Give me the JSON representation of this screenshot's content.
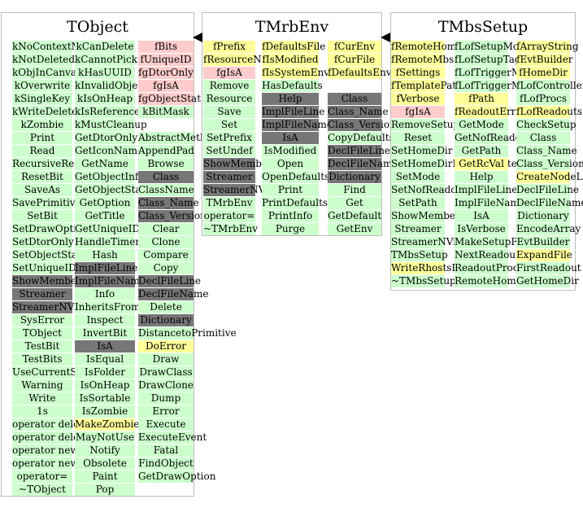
{
  "boxes": [
    {
      "title": "TObject",
      "columns": [
        [
          {
            "t": "kNoContextMenu",
            "k": "enum"
          },
          {
            "t": "kNotDeleted",
            "k": "enum"
          },
          {
            "t": "kObjInCanvas",
            "k": "enum"
          },
          {
            "t": "kOverwrite",
            "k": "enum"
          },
          {
            "t": "kSingleKey",
            "k": "enum"
          },
          {
            "t": "kWriteDelete",
            "k": "enum"
          },
          {
            "t": "kZombie",
            "k": "enum"
          },
          {
            "t": "Print",
            "k": "method"
          },
          {
            "t": "Read",
            "k": "method"
          },
          {
            "t": "RecursiveRemove",
            "k": "method"
          },
          {
            "t": "ResetBit",
            "k": "method"
          },
          {
            "t": "SaveAs",
            "k": "method"
          },
          {
            "t": "SavePrimitive",
            "k": "method"
          },
          {
            "t": "SetBit",
            "k": "method"
          },
          {
            "t": "SetDrawOption",
            "k": "method"
          },
          {
            "t": "SetDtorOnly",
            "k": "method"
          },
          {
            "t": "SetObjectStat",
            "k": "method"
          },
          {
            "t": "SetUniqueID",
            "k": "method"
          },
          {
            "t": "ShowMembers",
            "k": "derived"
          },
          {
            "t": "Streamer",
            "k": "derived"
          },
          {
            "t": "StreamerNVirtual",
            "k": "derived"
          },
          {
            "t": "SysError",
            "k": "method"
          },
          {
            "t": "TObject",
            "k": "method"
          },
          {
            "t": "TestBit",
            "k": "method"
          },
          {
            "t": "TestBits",
            "k": "method"
          },
          {
            "t": "UseCurrentStyle",
            "k": "method"
          },
          {
            "t": "Warning",
            "k": "method"
          },
          {
            "t": "Write",
            "k": "method"
          },
          {
            "t": "1s",
            "k": "method"
          },
          {
            "t": "operator delete",
            "k": "method"
          },
          {
            "t": "operator delete[]",
            "k": "method"
          },
          {
            "t": "operator new",
            "k": "method"
          },
          {
            "t": "operator new[]",
            "k": "method"
          },
          {
            "t": "operator=",
            "k": "method"
          },
          {
            "t": "~TObject",
            "k": "method"
          }
        ],
        [
          {
            "t": "kCanDelete",
            "k": "enum"
          },
          {
            "t": "kCannotPick",
            "k": "enum"
          },
          {
            "t": "kHasUUID",
            "k": "enum"
          },
          {
            "t": "kInvalidObject",
            "k": "enum"
          },
          {
            "t": "kIsOnHeap",
            "k": "enum"
          },
          {
            "t": "kIsReferenced",
            "k": "enum"
          },
          {
            "t": "kMustCleanup",
            "k": "enum"
          },
          {
            "t": "GetDtorOnly",
            "k": "method"
          },
          {
            "t": "GetIconName",
            "k": "method"
          },
          {
            "t": "GetName",
            "k": "method"
          },
          {
            "t": "GetObjectInfo",
            "k": "method"
          },
          {
            "t": "GetObjectStat",
            "k": "method"
          },
          {
            "t": "GetOption",
            "k": "method"
          },
          {
            "t": "GetTitle",
            "k": "method"
          },
          {
            "t": "GetUniqueID",
            "k": "method"
          },
          {
            "t": "HandleTimer",
            "k": "method"
          },
          {
            "t": "Hash",
            "k": "method"
          },
          {
            "t": "ImplFileLine",
            "k": "derived"
          },
          {
            "t": "ImplFileName",
            "k": "derived"
          },
          {
            "t": "Info",
            "k": "method"
          },
          {
            "t": "InheritsFrom",
            "k": "method"
          },
          {
            "t": "Inspect",
            "k": "method"
          },
          {
            "t": "InvertBit",
            "k": "method"
          },
          {
            "t": "IsA",
            "k": "derived"
          },
          {
            "t": "IsEqual",
            "k": "method"
          },
          {
            "t": "IsFolder",
            "k": "method"
          },
          {
            "t": "IsOnHeap",
            "k": "method"
          },
          {
            "t": "IsSortable",
            "k": "method"
          },
          {
            "t": "IsZombie",
            "k": "method"
          },
          {
            "t": "MakeZombie",
            "k": "getset"
          },
          {
            "t": "MayNotUse",
            "k": "method"
          },
          {
            "t": "Notify",
            "k": "method"
          },
          {
            "t": "Obsolete",
            "k": "method"
          },
          {
            "t": "Paint",
            "k": "method"
          },
          {
            "t": "Pop",
            "k": "method"
          }
        ],
        [
          {
            "t": "fBits",
            "k": "data"
          },
          {
            "t": "fUniqueID",
            "k": "data"
          },
          {
            "t": "fgDtorOnly",
            "k": "data"
          },
          {
            "t": "fgIsA",
            "k": "data"
          },
          {
            "t": "fgObjectStat",
            "k": "data"
          },
          {
            "t": "kBitMask",
            "k": "enum"
          },
          {
            "t": "",
            "k": "plain"
          },
          {
            "t": "AbstractMethod",
            "k": "method"
          },
          {
            "t": "AppendPad",
            "k": "method"
          },
          {
            "t": "Browse",
            "k": "method"
          },
          {
            "t": "Class",
            "k": "derived"
          },
          {
            "t": "ClassName",
            "k": "method"
          },
          {
            "t": "Class_Name",
            "k": "derived"
          },
          {
            "t": "Class_Version",
            "k": "derived"
          },
          {
            "t": "Clear",
            "k": "method"
          },
          {
            "t": "Clone",
            "k": "method"
          },
          {
            "t": "Compare",
            "k": "method"
          },
          {
            "t": "Copy",
            "k": "method"
          },
          {
            "t": "DeclFileLine",
            "k": "derived"
          },
          {
            "t": "DeclFileName",
            "k": "derived"
          },
          {
            "t": "Delete",
            "k": "method"
          },
          {
            "t": "Dictionary",
            "k": "derived"
          },
          {
            "t": "DistancetoPrimitive",
            "k": "method"
          },
          {
            "t": "DoError",
            "k": "getset"
          },
          {
            "t": "Draw",
            "k": "method"
          },
          {
            "t": "DrawClass",
            "k": "method"
          },
          {
            "t": "DrawClone",
            "k": "method"
          },
          {
            "t": "Dump",
            "k": "method"
          },
          {
            "t": "Error",
            "k": "method"
          },
          {
            "t": "Execute",
            "k": "method"
          },
          {
            "t": "ExecuteEvent",
            "k": "method"
          },
          {
            "t": "Fatal",
            "k": "method"
          },
          {
            "t": "FindObject",
            "k": "method"
          },
          {
            "t": "GetDrawOption",
            "k": "method"
          }
        ]
      ]
    },
    {
      "title": "TMrbEnv",
      "columns": [
        [
          {
            "t": "fPrefix",
            "k": "getset"
          },
          {
            "t": "fResourceName",
            "k": "getset"
          },
          {
            "t": "fgIsA",
            "k": "data"
          },
          {
            "t": "Remove",
            "k": "method"
          },
          {
            "t": "Resource",
            "k": "method"
          },
          {
            "t": "Save",
            "k": "method"
          },
          {
            "t": "Set",
            "k": "method"
          },
          {
            "t": "SetPrefix",
            "k": "method"
          },
          {
            "t": "SetUndef",
            "k": "method"
          },
          {
            "t": "ShowMembers",
            "k": "derived"
          },
          {
            "t": "Streamer",
            "k": "derived"
          },
          {
            "t": "StreamerNVirtual",
            "k": "derived"
          },
          {
            "t": "TMrbEnv",
            "k": "method"
          },
          {
            "t": "operator=",
            "k": "method"
          },
          {
            "t": "~TMrbEnv",
            "k": "method"
          }
        ],
        [
          {
            "t": "fDefaultsFile",
            "k": "getset"
          },
          {
            "t": "fIsModified",
            "k": "getset"
          },
          {
            "t": "fIsSystemEnv",
            "k": "getset"
          },
          {
            "t": "HasDefaults",
            "k": "method"
          },
          {
            "t": "Help",
            "k": "derived"
          },
          {
            "t": "ImplFileLine",
            "k": "derived"
          },
          {
            "t": "ImplFileName",
            "k": "derived"
          },
          {
            "t": "IsA",
            "k": "derived"
          },
          {
            "t": "IsModified",
            "k": "method"
          },
          {
            "t": "Open",
            "k": "method"
          },
          {
            "t": "OpenDefaults",
            "k": "method"
          },
          {
            "t": "Print",
            "k": "method"
          },
          {
            "t": "PrintDefaults",
            "k": "method"
          },
          {
            "t": "PrintInfo",
            "k": "method"
          },
          {
            "t": "Purge",
            "k": "method"
          }
        ],
        [
          {
            "t": "fCurEnv",
            "k": "getset"
          },
          {
            "t": "fCurFile",
            "k": "getset"
          },
          {
            "t": "fDefaultsEnv",
            "k": "getset"
          },
          {
            "t": "",
            "k": "plain"
          },
          {
            "t": "Class",
            "k": "derived"
          },
          {
            "t": "Class_Name",
            "k": "derived"
          },
          {
            "t": "Class_Version",
            "k": "derived"
          },
          {
            "t": "CopyDefaults",
            "k": "method"
          },
          {
            "t": "DeclFileLine",
            "k": "derived"
          },
          {
            "t": "DeclFileName",
            "k": "derived"
          },
          {
            "t": "Dictionary",
            "k": "derived"
          },
          {
            "t": "Find",
            "k": "method"
          },
          {
            "t": "Get",
            "k": "method"
          },
          {
            "t": "GetDefault",
            "k": "method"
          },
          {
            "t": "GetEnv",
            "k": "method"
          }
        ]
      ]
    },
    {
      "title": "TMbsSetup",
      "columns": [
        [
          {
            "t": "fRemoteHome",
            "k": "getset"
          },
          {
            "t": "fRemoteMbsHome",
            "k": "getset"
          },
          {
            "t": "fSettings",
            "k": "getset"
          },
          {
            "t": "fTemplatePath",
            "k": "getset"
          },
          {
            "t": "fVerbose",
            "k": "getset"
          },
          {
            "t": "fgIsA",
            "k": "data"
          },
          {
            "t": "RemoveSetup",
            "k": "method"
          },
          {
            "t": "Reset",
            "k": "method"
          },
          {
            "t": "SetHomeDir",
            "k": "method"
          },
          {
            "t": "SetHomeDirFromRemote",
            "k": "method"
          },
          {
            "t": "SetMode",
            "k": "method"
          },
          {
            "t": "SetNofReadouts",
            "k": "method"
          },
          {
            "t": "SetPath",
            "k": "method"
          },
          {
            "t": "ShowMembers",
            "k": "method"
          },
          {
            "t": "Streamer",
            "k": "method"
          },
          {
            "t": "StreamerNVirtual",
            "k": "method"
          },
          {
            "t": "TMbsSetup",
            "k": "method"
          },
          {
            "t": "WriteRhostsFile",
            "k": "getset"
          },
          {
            "t": "~TMbsSetup",
            "k": "method"
          }
        ],
        [
          {
            "t": "fLofSetupModes",
            "k": "method"
          },
          {
            "t": "fLofSetupTags",
            "k": "method"
          },
          {
            "t": "fLofTriggerModes",
            "k": "method"
          },
          {
            "t": "fLofTriggerModules",
            "k": "method"
          },
          {
            "t": "fPath",
            "k": "getset"
          },
          {
            "t": "fReadoutError",
            "k": "getset"
          },
          {
            "t": "GetMode",
            "k": "method"
          },
          {
            "t": "GetNofReadouts",
            "k": "method"
          },
          {
            "t": "GetPath",
            "k": "method"
          },
          {
            "t": "GetRcVal",
            "k": "getset"
          },
          {
            "t": "Help",
            "k": "method"
          },
          {
            "t": "ImplFileLine",
            "k": "method"
          },
          {
            "t": "ImplFileName",
            "k": "method"
          },
          {
            "t": "IsA",
            "k": "method"
          },
          {
            "t": "IsVerbose",
            "k": "method"
          },
          {
            "t": "MakeSetupFiles",
            "k": "method"
          },
          {
            "t": "NextReadout",
            "k": "method"
          },
          {
            "t": "ReadoutProc",
            "k": "method"
          },
          {
            "t": "RemoteHomeDir",
            "k": "method"
          }
        ],
        [
          {
            "t": "fArrayString",
            "k": "getset"
          },
          {
            "t": "fEvtBuilder",
            "k": "getset"
          },
          {
            "t": "fHomeDir",
            "k": "getset"
          },
          {
            "t": "fLofControllers",
            "k": "method"
          },
          {
            "t": "fLofProcs",
            "k": "method"
          },
          {
            "t": "fLofReadouts",
            "k": "getset"
          },
          {
            "t": "CheckSetup",
            "k": "method"
          },
          {
            "t": "Class",
            "k": "method"
          },
          {
            "t": "Class_Name",
            "k": "method"
          },
          {
            "t": "Class_Version",
            "k": "method"
          },
          {
            "t": "CreateNodeList",
            "k": "getset"
          },
          {
            "t": "DeclFileLine",
            "k": "method"
          },
          {
            "t": "DeclFileName",
            "k": "method"
          },
          {
            "t": "Dictionary",
            "k": "method"
          },
          {
            "t": "EncodeArray",
            "k": "method"
          },
          {
            "t": "EvtBuilder",
            "k": "method"
          },
          {
            "t": "ExpandFile",
            "k": "getset"
          },
          {
            "t": "FirstReadout",
            "k": "method"
          },
          {
            "t": "GetHomeDir",
            "k": "method"
          }
        ]
      ]
    }
  ],
  "colors": {
    "method": "#ccffcc",
    "data": "#ffcccc",
    "getset": "#ffff99",
    "derived": "#777777",
    "border": "#bdbdbd"
  }
}
